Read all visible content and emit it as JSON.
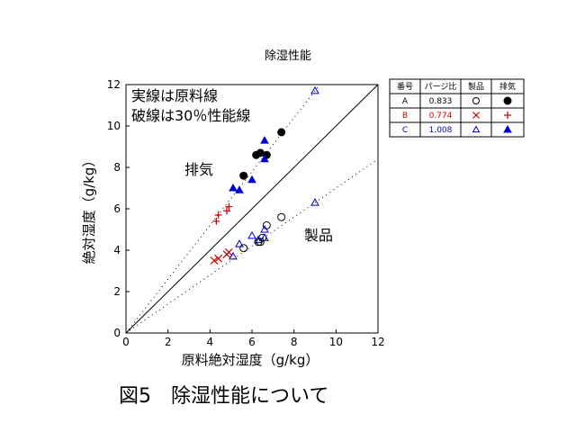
{
  "chart_data": {
    "type": "scatter",
    "title": "除湿性能",
    "xlabel": "原料絶対湿度（g/kg）",
    "ylabel": "絶対湿度（g/kg）",
    "xlim": [
      0,
      12
    ],
    "ylim": [
      0,
      12
    ],
    "xticks": [
      "0",
      "2",
      "4",
      "6",
      "8",
      "10",
      "12"
    ],
    "yticks": [
      "0",
      "2",
      "4",
      "6",
      "8",
      "10",
      "12"
    ],
    "grid": false,
    "legend_position": "right",
    "annotations": {
      "note_line1": "実線は原料線",
      "note_line2": "破線は30％性能線",
      "exhaust_label": "排気",
      "product_label": "製品"
    },
    "reference_lines": [
      {
        "style": "solid",
        "slope": 1.0
      },
      {
        "style": "dotted",
        "slope": 1.3
      },
      {
        "style": "dotted",
        "slope": 0.7
      }
    ],
    "legend": {
      "headers": [
        "番号",
        "パージ比",
        "製品",
        "排気"
      ],
      "rows": [
        {
          "id": "A",
          "ratio": "0.833",
          "color": "#000000",
          "product_marker": "open-circle",
          "exhaust_marker": "filled-circle"
        },
        {
          "id": "B",
          "ratio": "0.774",
          "color": "#cc0000",
          "product_marker": "x",
          "exhaust_marker": "plus"
        },
        {
          "id": "C",
          "ratio": "1.008",
          "color": "#0000cc",
          "product_marker": "open-triangle",
          "exhaust_marker": "filled-triangle"
        }
      ]
    },
    "series": [
      {
        "id": "A",
        "kind": "product",
        "marker": "open-circle",
        "color": "#000000",
        "points": [
          [
            5.6,
            4.1
          ],
          [
            6.3,
            4.4
          ],
          [
            6.4,
            4.4
          ],
          [
            6.5,
            4.6
          ],
          [
            6.7,
            5.2
          ],
          [
            7.4,
            5.6
          ]
        ]
      },
      {
        "id": "A",
        "kind": "exhaust",
        "marker": "filled-circle",
        "color": "#000000",
        "points": [
          [
            5.6,
            7.6
          ],
          [
            6.2,
            8.6
          ],
          [
            6.4,
            8.7
          ],
          [
            6.7,
            8.6
          ],
          [
            7.4,
            9.7
          ]
        ]
      },
      {
        "id": "B",
        "kind": "product",
        "marker": "x",
        "color": "#cc0000",
        "points": [
          [
            4.2,
            3.5
          ],
          [
            4.4,
            3.6
          ],
          [
            4.8,
            3.8
          ],
          [
            4.9,
            3.9
          ]
        ]
      },
      {
        "id": "B",
        "kind": "exhaust",
        "marker": "plus",
        "color": "#cc0000",
        "points": [
          [
            4.3,
            5.4
          ],
          [
            4.4,
            5.7
          ],
          [
            4.8,
            5.9
          ],
          [
            4.9,
            6.1
          ]
        ]
      },
      {
        "id": "C",
        "kind": "product",
        "marker": "open-triangle",
        "color": "#0000cc",
        "points": [
          [
            5.1,
            3.7
          ],
          [
            5.4,
            4.3
          ],
          [
            6.0,
            4.7
          ],
          [
            6.3,
            4.5
          ],
          [
            6.6,
            4.6
          ],
          [
            6.6,
            5.0
          ],
          [
            9.0,
            6.3
          ],
          [
            9.0,
            11.7
          ]
        ]
      },
      {
        "id": "C",
        "kind": "exhaust",
        "marker": "filled-triangle",
        "color": "#0000cc",
        "points": [
          [
            5.1,
            7.0
          ],
          [
            5.4,
            6.9
          ],
          [
            6.0,
            7.4
          ],
          [
            6.6,
            8.4
          ],
          [
            6.6,
            9.3
          ]
        ]
      }
    ]
  },
  "caption": "図5　除湿性能について"
}
